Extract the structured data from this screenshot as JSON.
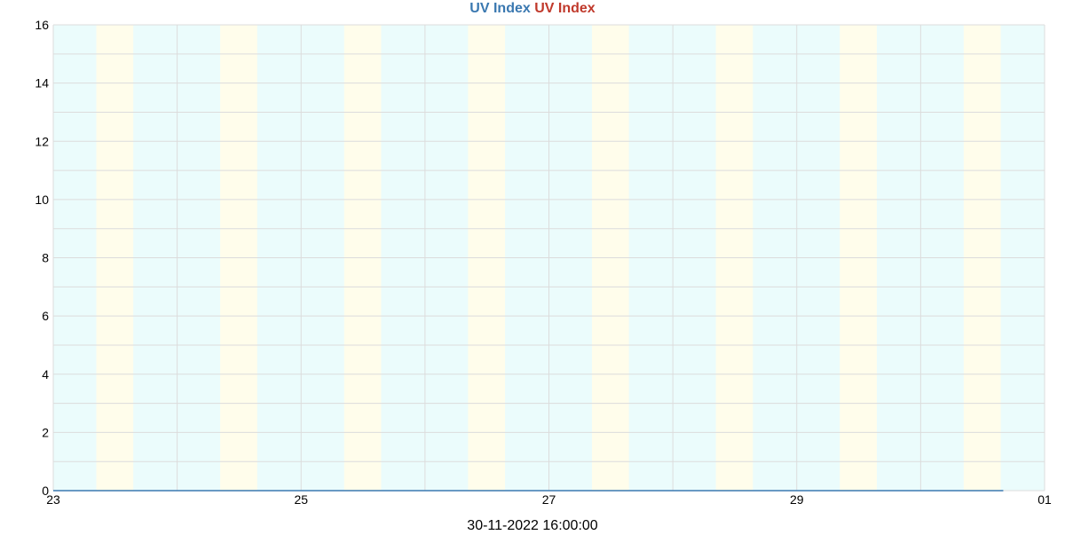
{
  "chart_data": {
    "type": "line",
    "title_parts": [
      {
        "text": "UV Index",
        "color": "#3a78b0"
      },
      {
        "text": "UV Index",
        "color": "#c0392b"
      }
    ],
    "x_caption": "30-11-2022 16:00:00",
    "xlabel": "",
    "ylabel": "",
    "ylim": [
      0,
      16
    ],
    "y_ticks": [
      0,
      2,
      4,
      6,
      8,
      10,
      12,
      14,
      16
    ],
    "x_domain": [
      "2022-11-23 00:00",
      "2022-12-01 00:00"
    ],
    "x_ticks": [
      {
        "date": "2022-11-23",
        "label": "23"
      },
      {
        "date": "2022-11-25",
        "label": "25"
      },
      {
        "date": "2022-11-27",
        "label": "27"
      },
      {
        "date": "2022-11-29",
        "label": "29"
      },
      {
        "date": "2022-12-01",
        "label": "01"
      }
    ],
    "grid": true,
    "day_band_color": "#fffdeb",
    "night_band_color": "#ebfcfc",
    "day_bands": [
      [
        "2022-11-23 08:20",
        "2022-11-23 15:30"
      ],
      [
        "2022-11-24 08:20",
        "2022-11-24 15:30"
      ],
      [
        "2022-11-25 08:20",
        "2022-11-25 15:30"
      ],
      [
        "2022-11-26 08:20",
        "2022-11-26 15:30"
      ],
      [
        "2022-11-27 08:20",
        "2022-11-27 15:30"
      ],
      [
        "2022-11-28 08:20",
        "2022-11-28 15:30"
      ],
      [
        "2022-11-29 08:20",
        "2022-11-29 15:30"
      ],
      [
        "2022-11-30 08:20",
        "2022-11-30 15:30"
      ]
    ],
    "series": [
      {
        "color": "#3a78b0",
        "x": [
          "2022-11-23 00:00",
          "2022-11-30 16:00"
        ],
        "y": [
          0,
          0
        ]
      }
    ]
  }
}
